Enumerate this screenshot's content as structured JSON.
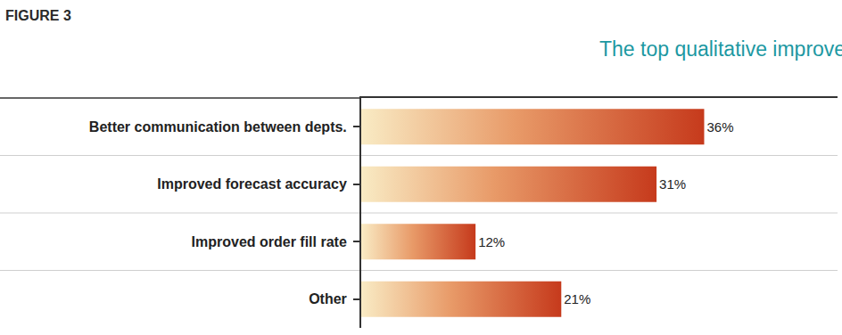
{
  "chart_data": {
    "type": "bar",
    "orientation": "horizontal",
    "subtitle": "FIGURE 3",
    "title": "The top qualitative improvements that have occurred due to S&OP.",
    "categories": [
      "Better communication between depts.",
      "Improved forecast accuracy",
      "Improved order fill rate",
      "Other"
    ],
    "values": [
      36,
      31,
      12,
      21
    ],
    "value_labels": [
      "36%",
      "31%",
      "12%",
      "21%"
    ],
    "data_labels": true,
    "color": "#c63a1c",
    "xlim": [
      0,
      50
    ],
    "xticks": [],
    "tick_labels": "y",
    "grid": false
  }
}
